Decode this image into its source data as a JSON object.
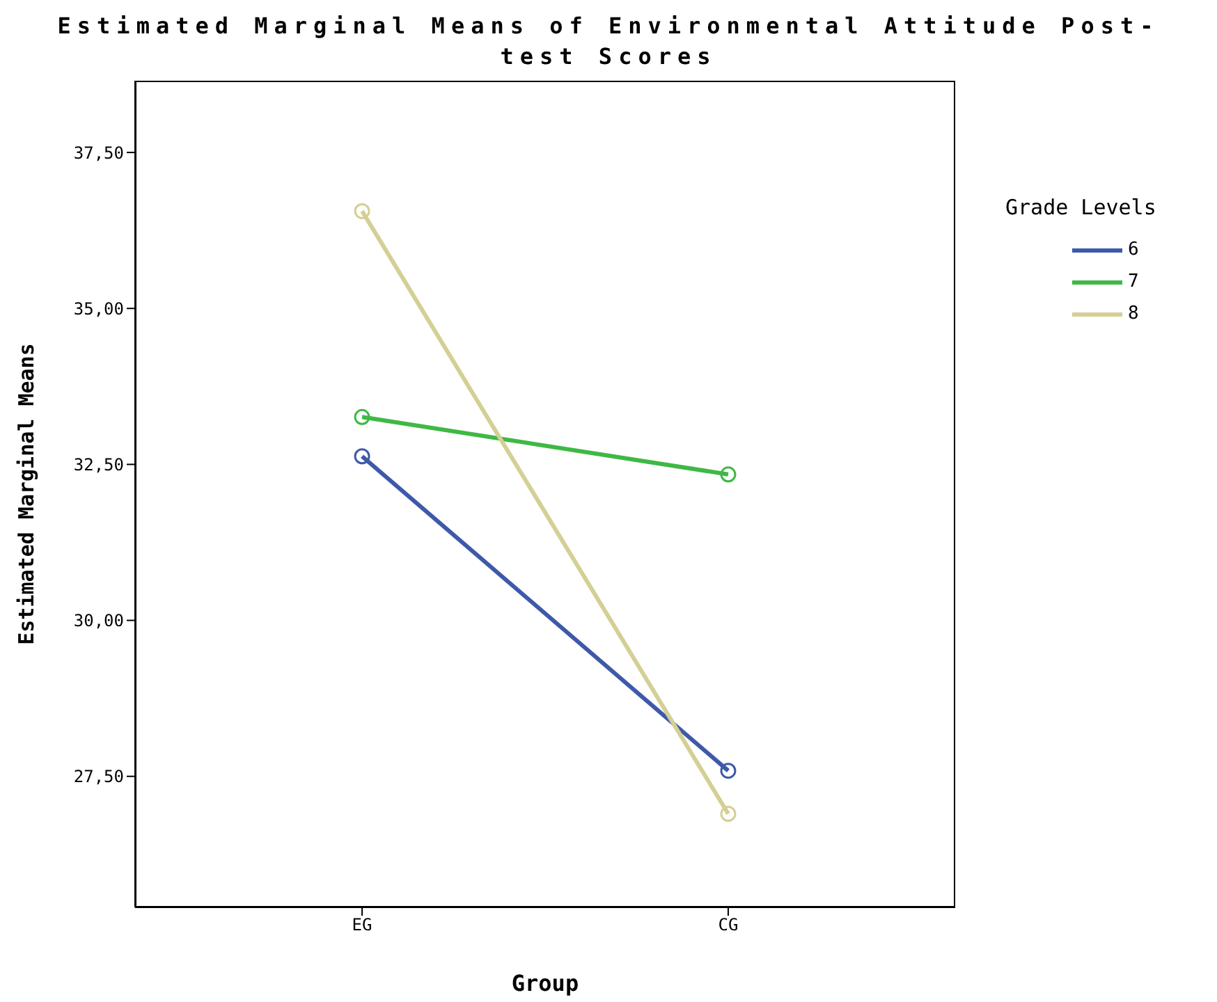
{
  "chart_data": {
    "type": "line",
    "title": "Estimated Marginal Means of Environmental Attitude Post-test Scores",
    "xlabel": "Group",
    "ylabel": "Estimated Marginal Means",
    "legend_title": "Grade Levels",
    "categories": [
      "EG",
      "CG"
    ],
    "series": [
      {
        "name": "6",
        "color": "#3e59a8",
        "values": [
          32.63,
          27.59
        ]
      },
      {
        "name": "7",
        "color": "#3fb845",
        "values": [
          33.26,
          32.34
        ]
      },
      {
        "name": "8",
        "color": "#d4cf94",
        "values": [
          36.56,
          26.9
        ]
      }
    ],
    "ylim": [
      25.4,
      38.65
    ],
    "yticks": [
      {
        "value": 27.5,
        "label": "27,50"
      },
      {
        "value": 30,
        "label": "30,00"
      },
      {
        "value": 32.5,
        "label": "32,50"
      },
      {
        "value": 35,
        "label": "35,00"
      },
      {
        "value": 37.5,
        "label": "37,50"
      }
    ],
    "legend": "right",
    "marker": "circle",
    "line_style": "solid",
    "grid": false
  }
}
